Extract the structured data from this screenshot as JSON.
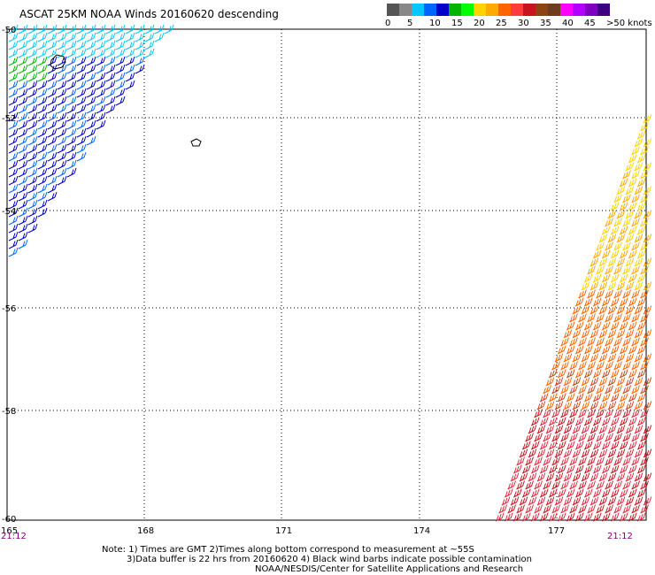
{
  "title": "ASCAT 25KM NOAA Winds 20160620 descending",
  "legend": {
    "colors": [
      "#555555",
      "#888888",
      "#00c8ff",
      "#0064ff",
      "#0000c8",
      "#00b400",
      "#00ff00",
      "#ffd200",
      "#ffaa00",
      "#ff6400",
      "#ff3c3c",
      "#c8141e",
      "#8b4513",
      "#6e3c1e",
      "#ff00ff",
      "#b400ff",
      "#8000c0",
      "#3c0080"
    ],
    "labels": [
      "0",
      "5",
      "10",
      "15",
      "20",
      "25",
      "30",
      "35",
      "40",
      "45",
      ">50 knots"
    ]
  },
  "axes": {
    "lat_labels": [
      "-50",
      "-52",
      "-54",
      "-56",
      "-58",
      "-60"
    ],
    "lon_labels": [
      "165",
      "168",
      "171",
      "174",
      "177"
    ],
    "time_left": "21:12",
    "time_right": "21:12"
  },
  "notes": {
    "line1": "Note: 1) Times are GMT 2)Times along bottom correspond to measurement at ~55S",
    "line2": "3)Data buffer is 22 hrs from 20160620 4) Black wind barbs indicate possible contamination",
    "line3": "NOAA/NESDIS/Center for Satellite Applications and Research"
  }
}
